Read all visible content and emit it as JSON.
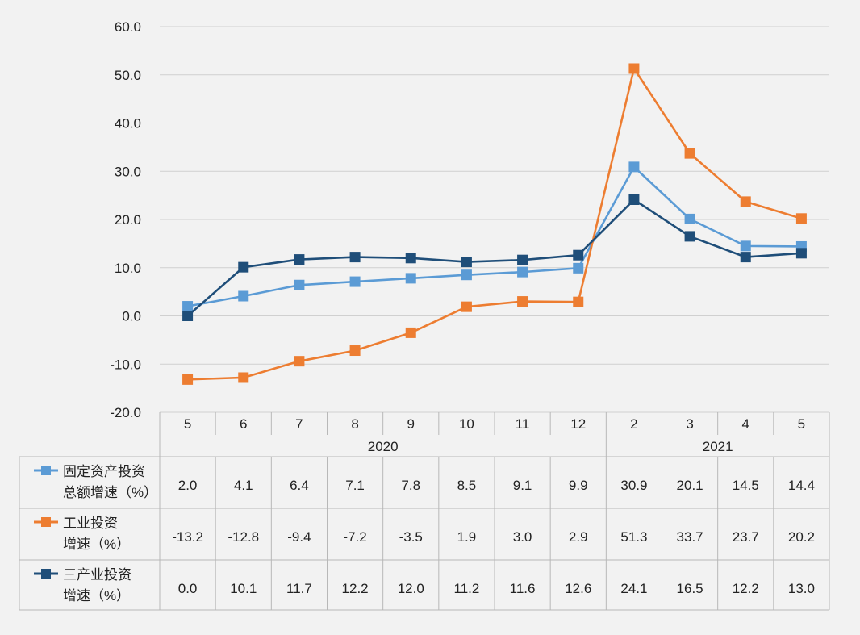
{
  "chart_data": {
    "type": "line",
    "categories": [
      "5",
      "6",
      "7",
      "8",
      "9",
      "10",
      "11",
      "12",
      "2",
      "3",
      "4",
      "5"
    ],
    "category_groups": [
      {
        "label": "2020",
        "span": 8
      },
      {
        "label": "2021",
        "span": 4
      }
    ],
    "ylim": [
      -20,
      60
    ],
    "yticks": [
      "60.0",
      "50.0",
      "40.0",
      "30.0",
      "20.0",
      "10.0",
      "0.0",
      "-10.0",
      "-20.0"
    ],
    "ytick_values": [
      60,
      50,
      40,
      30,
      20,
      10,
      0,
      -10,
      -20
    ],
    "grid": true,
    "legend": "data-table",
    "series": [
      {
        "name_lines": [
          "固定资产投资",
          "总额增速（%）"
        ],
        "color": "#5b9bd5",
        "values": [
          2.0,
          4.1,
          6.4,
          7.1,
          7.8,
          8.5,
          9.1,
          9.9,
          30.9,
          20.1,
          14.5,
          14.4
        ],
        "labels": [
          "2.0",
          "4.1",
          "6.4",
          "7.1",
          "7.8",
          "8.5",
          "9.1",
          "9.9",
          "30.9",
          "20.1",
          "14.5",
          "14.4"
        ]
      },
      {
        "name_lines": [
          "工业投资",
          "增速（%）"
        ],
        "color": "#ed7d31",
        "values": [
          -13.2,
          -12.8,
          -9.4,
          -7.2,
          -3.5,
          1.9,
          3.0,
          2.9,
          51.3,
          33.7,
          23.7,
          20.2
        ],
        "labels": [
          "-13.2",
          "-12.8",
          "-9.4",
          "-7.2",
          "-3.5",
          "1.9",
          "3.0",
          "2.9",
          "51.3",
          "33.7",
          "23.7",
          "20.2"
        ]
      },
      {
        "name_lines": [
          "三产业投资",
          "增速（%）"
        ],
        "color": "#1f4e79",
        "values": [
          0.0,
          10.1,
          11.7,
          12.2,
          12.0,
          11.2,
          11.6,
          12.6,
          24.1,
          16.5,
          12.2,
          13.0
        ],
        "labels": [
          "0.0",
          "10.1",
          "11.7",
          "12.2",
          "12.0",
          "11.2",
          "11.6",
          "12.6",
          "24.1",
          "16.5",
          "12.2",
          "13.0"
        ]
      }
    ]
  }
}
